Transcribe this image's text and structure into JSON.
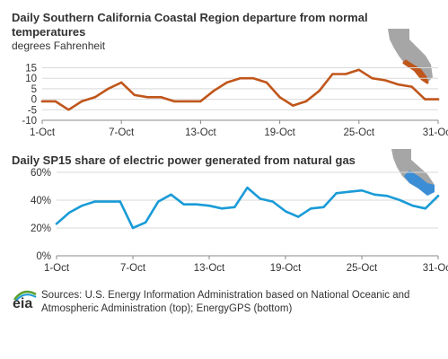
{
  "colors": {
    "temp_line": "#c0561b",
    "gas_line": "#1a9bd7",
    "map_gray": "#a6a6a6",
    "map_orange": "#c0561b",
    "map_blue": "#3b8dd6",
    "grid": "#d9d9d9",
    "logo_green": "#5aa02c",
    "logo_blue": "#1a9bd7"
  },
  "source_text": "Sources: U.S. Energy Information Administration based on National Oceanic and Atmospheric Administration (top); EnergyGPS (bottom)",
  "logo_text": "eia",
  "chart_data": [
    {
      "type": "line",
      "title": "Daily Southern California Coastal Region departure from normal temperatures",
      "subtitle": "degrees Fahrenheit",
      "icon": "california-map-coastal-region",
      "yticks": [
        "15",
        "10",
        "5",
        "0",
        "-5",
        "-10"
      ],
      "ytick_values": [
        15,
        10,
        5,
        0,
        -5,
        -10
      ],
      "ylim": [
        -10,
        15
      ],
      "xticks": [
        "1-Oct",
        "7-Oct",
        "13-Oct",
        "19-Oct",
        "25-Oct",
        "31-Oct"
      ],
      "xtick_days": [
        1,
        7,
        13,
        19,
        25,
        31
      ],
      "x": [
        1,
        2,
        3,
        4,
        5,
        6,
        7,
        8,
        9,
        10,
        11,
        12,
        13,
        14,
        15,
        16,
        17,
        18,
        19,
        20,
        21,
        22,
        23,
        24,
        25,
        26,
        27,
        28,
        29,
        30,
        31
      ],
      "values": [
        -1,
        -1,
        -5,
        -1,
        1,
        5,
        8,
        2,
        1,
        1,
        -1,
        -1,
        -1,
        4,
        8,
        10,
        10,
        8,
        1,
        -3,
        -1,
        4,
        12,
        12,
        14,
        10,
        9,
        7,
        6,
        0,
        0
      ]
    },
    {
      "type": "line",
      "title": "Daily SP15 share of electric power generated from natural gas",
      "subtitle": "",
      "icon": "california-map-sp15-region",
      "yticks": [
        "60%",
        "40%",
        "20%",
        "0%"
      ],
      "ytick_values": [
        60,
        40,
        20,
        0
      ],
      "ylim": [
        0,
        60
      ],
      "xticks": [
        "1-Oct",
        "7-Oct",
        "13-Oct",
        "19-Oct",
        "25-Oct",
        "31-Oct"
      ],
      "xtick_days": [
        1,
        7,
        13,
        19,
        25,
        31
      ],
      "x": [
        1,
        2,
        3,
        4,
        5,
        6,
        7,
        8,
        9,
        10,
        11,
        12,
        13,
        14,
        15,
        16,
        17,
        18,
        19,
        20,
        21,
        22,
        23,
        24,
        25,
        26,
        27,
        28,
        29,
        30,
        31
      ],
      "values": [
        23,
        31,
        36,
        39,
        39,
        39,
        20,
        24,
        39,
        44,
        37,
        37,
        36,
        34,
        35,
        49,
        41,
        39,
        32,
        28,
        34,
        35,
        45,
        46,
        47,
        44,
        43,
        40,
        36,
        34,
        43
      ]
    }
  ]
}
